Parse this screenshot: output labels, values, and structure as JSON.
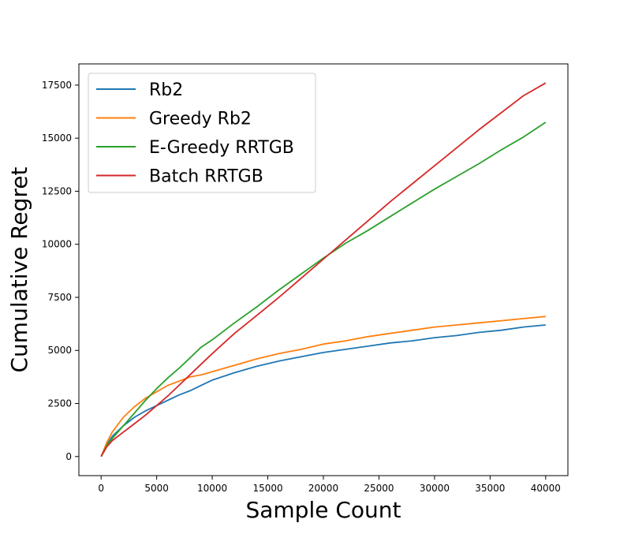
{
  "chart_data": {
    "type": "line",
    "title": "",
    "xlabel": "Sample Count",
    "ylabel": "Cumulative Regret",
    "xlim": [
      -2000,
      42000
    ],
    "ylim": [
      -900,
      18500
    ],
    "xticks": [
      0,
      5000,
      10000,
      15000,
      20000,
      25000,
      30000,
      35000,
      40000
    ],
    "yticks": [
      0,
      2500,
      5000,
      7500,
      10000,
      12500,
      15000,
      17500
    ],
    "grid": false,
    "legend_position": "upper-left",
    "x": [
      0,
      500,
      1000,
      2000,
      3000,
      4000,
      5000,
      6000,
      7000,
      8000,
      9000,
      10000,
      12000,
      14000,
      16000,
      18000,
      20000,
      22000,
      24000,
      26000,
      28000,
      30000,
      32000,
      34000,
      36000,
      38000,
      40000
    ],
    "series": [
      {
        "name": "Rb2",
        "color": "#1f77b4",
        "values": [
          0,
          550,
          950,
          1450,
          1850,
          2150,
          2400,
          2650,
          2900,
          3100,
          3350,
          3600,
          3950,
          4250,
          4500,
          4700,
          4900,
          5050,
          5200,
          5350,
          5450,
          5600,
          5700,
          5850,
          5950,
          6100,
          6200
        ]
      },
      {
        "name": "Greedy Rb2",
        "color": "#ff7f0e",
        "values": [
          0,
          650,
          1150,
          1850,
          2350,
          2750,
          3050,
          3350,
          3550,
          3750,
          3850,
          4000,
          4300,
          4600,
          4850,
          5050,
          5300,
          5450,
          5650,
          5800,
          5950,
          6100,
          6200,
          6300,
          6400,
          6500,
          6600
        ]
      },
      {
        "name": "E-Greedy RRTGB",
        "color": "#2ca02c",
        "values": [
          0,
          500,
          850,
          1450,
          2050,
          2650,
          3200,
          3700,
          4150,
          4650,
          5150,
          5500,
          6300,
          7050,
          7850,
          8600,
          9350,
          10050,
          10650,
          11300,
          11950,
          12600,
          13200,
          13800,
          14450,
          15050,
          15750
        ]
      },
      {
        "name": "Batch RRTGB",
        "color": "#d62728",
        "values": [
          0,
          450,
          750,
          1150,
          1550,
          1950,
          2400,
          2850,
          3350,
          3850,
          4350,
          4850,
          5800,
          6650,
          7500,
          8400,
          9300,
          10200,
          11100,
          12000,
          12850,
          13700,
          14550,
          15400,
          16200,
          17000,
          17600
        ]
      }
    ]
  }
}
